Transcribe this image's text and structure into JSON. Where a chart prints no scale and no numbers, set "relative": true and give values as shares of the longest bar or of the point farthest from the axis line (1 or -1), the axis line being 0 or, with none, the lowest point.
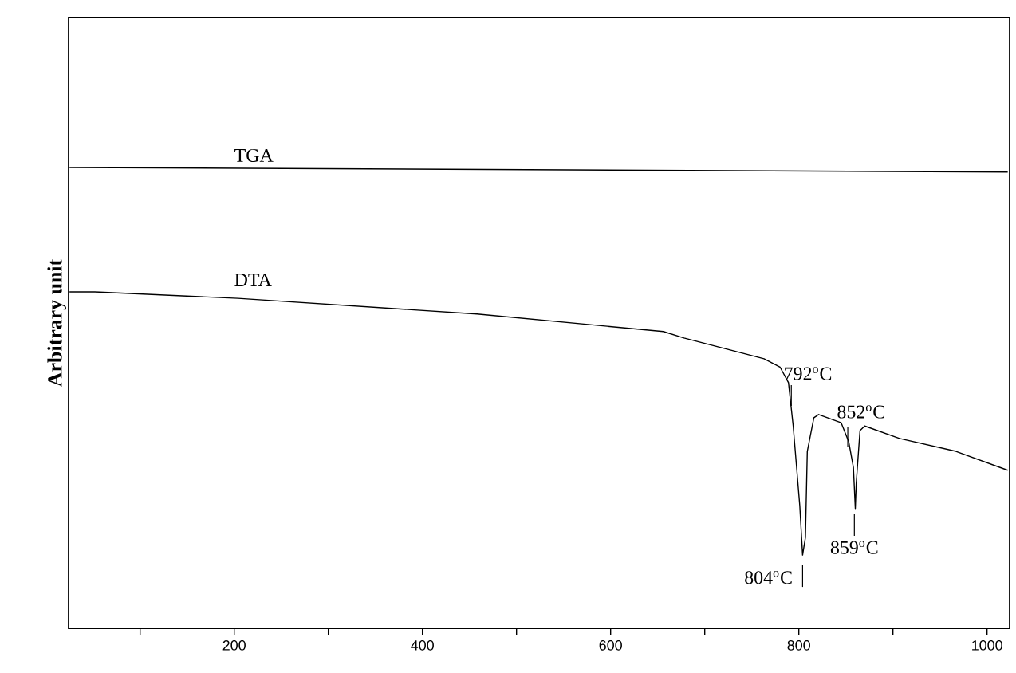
{
  "chart_data": {
    "type": "line",
    "relative": true,
    "ylabel": "Arbitrary unit",
    "xlim": [
      24,
      1024
    ],
    "xticks": [
      {
        "value": 100,
        "label": null
      },
      200,
      {
        "value": 300,
        "label": null
      },
      400,
      {
        "value": 500,
        "label": null
      },
      600,
      {
        "value": 700,
        "label": null
      },
      800,
      {
        "value": 900,
        "label": null
      },
      1000
    ],
    "series": [
      {
        "name": "TGA",
        "color": "#000000",
        "x": [
          25,
          1022
        ],
        "values": [
          1.0,
          0.99
        ]
      },
      {
        "name": "DTA",
        "color": "#000000",
        "x": [
          25,
          52,
          204,
          458,
          656,
          678,
          763,
          780,
          789,
          794,
          801,
          804,
          807,
          809,
          816,
          821,
          845,
          853,
          858,
          860,
          861,
          865,
          870,
          907,
          967,
          1022
        ],
        "values": [
          0.73,
          0.73,
          0.716,
          0.682,
          0.644,
          0.63,
          0.585,
          0.567,
          0.533,
          0.439,
          0.266,
          0.159,
          0.197,
          0.384,
          0.457,
          0.464,
          0.446,
          0.405,
          0.349,
          0.26,
          0.315,
          0.429,
          0.439,
          0.412,
          0.384,
          0.343
        ]
      }
    ],
    "annotations": [
      {
        "text": "792$^{o}$C",
        "x": 792,
        "y": 0.5
      },
      {
        "text": "852$^{o}$C",
        "x": 852,
        "y": 0.41
      },
      {
        "text": "804$^{o}$C",
        "x": 804,
        "y": 0.159
      },
      {
        "text": "859$^{o}$C",
        "x": 859,
        "y": 0.27
      }
    ]
  }
}
